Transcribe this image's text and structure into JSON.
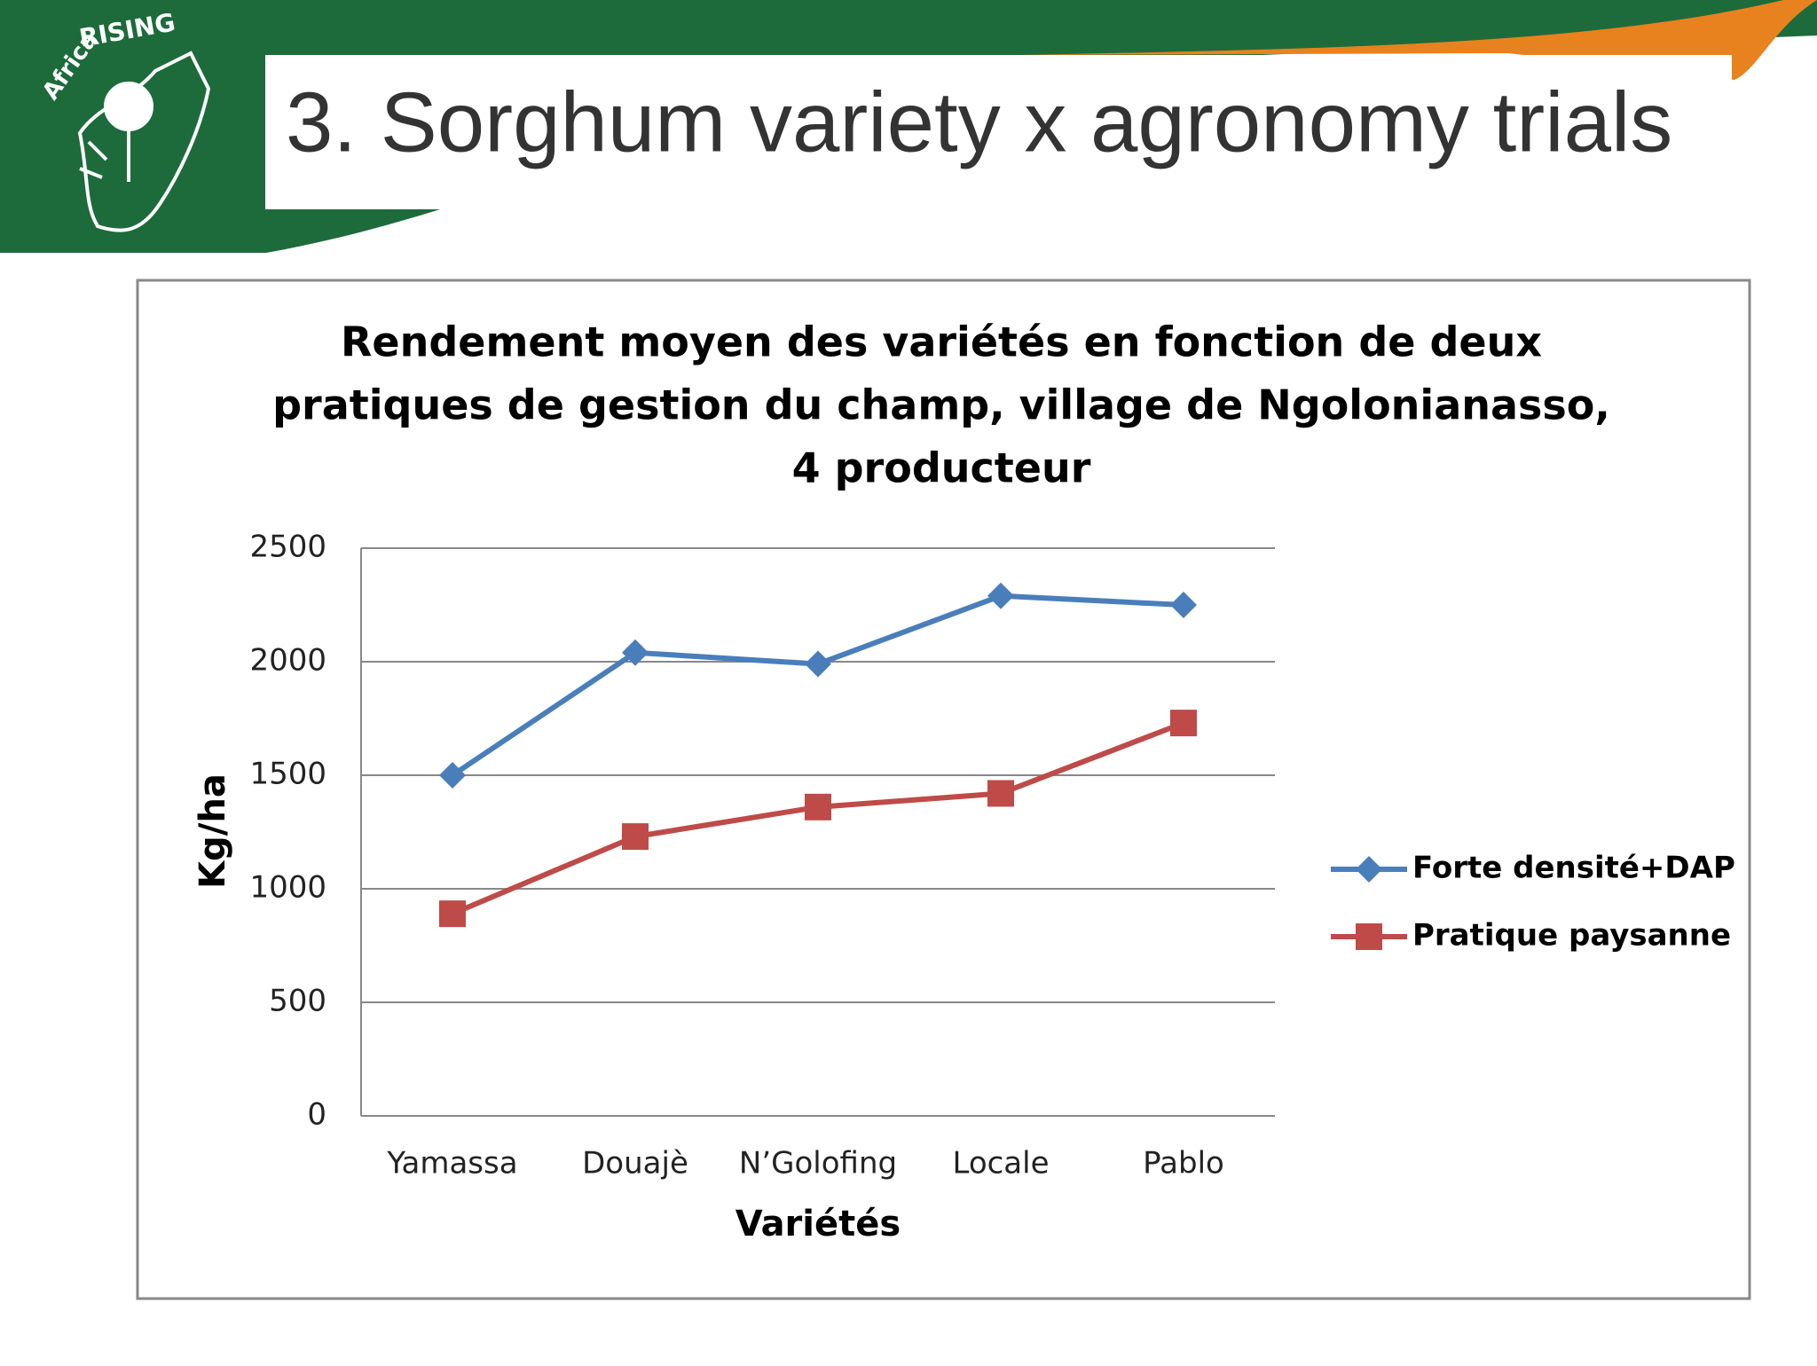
{
  "slide_title": "3. Sorghum variety x agronomy trials",
  "logo": {
    "africa": "Africa",
    "rising": "RISING"
  },
  "chart_data": {
    "type": "line",
    "title": [
      "Rendement moyen des variétés en fonction de deux",
      "pratiques de gestion du champ, village de Ngolonianasso,",
      "4 producteur"
    ],
    "x_label": "Variétés",
    "y_label": "Kg/ha",
    "categories": [
      "Yamassa",
      "Douajè",
      "N’Golofing",
      "Locale",
      "Pablo"
    ],
    "series": [
      {
        "name": "Forte densité+DAP",
        "color": "#4a7ebb",
        "marker": "diamond",
        "values": [
          1500,
          2040,
          1990,
          2290,
          2250
        ]
      },
      {
        "name": "Pratique paysanne",
        "color": "#be4b48",
        "marker": "square",
        "values": [
          890,
          1230,
          1360,
          1420,
          1730
        ]
      }
    ],
    "ylim": [
      0,
      2500
    ],
    "yticks": [
      0,
      500,
      1000,
      1500,
      2000,
      2500
    ],
    "grid": true,
    "legend": "right"
  }
}
